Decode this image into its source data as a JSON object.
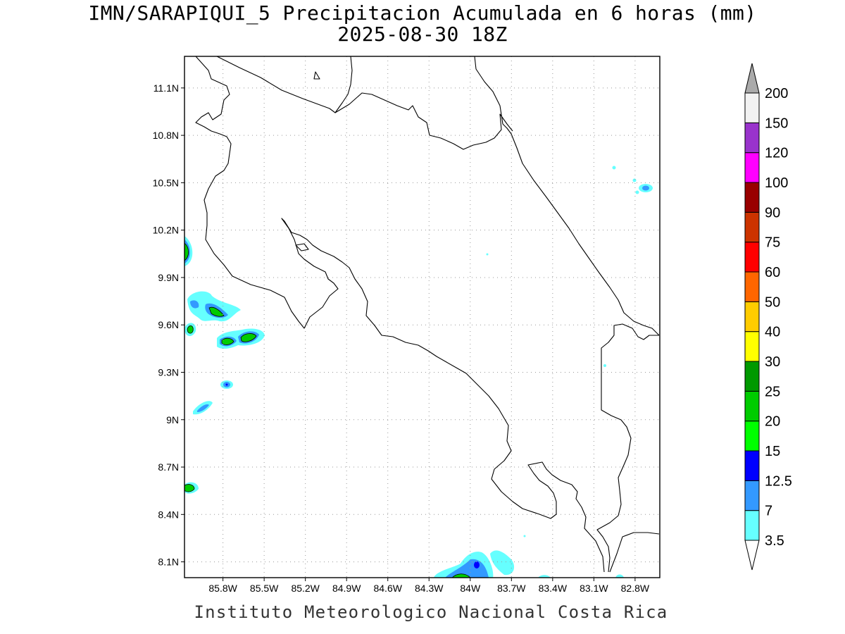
{
  "title_line1": "IMN/SARAPIQUI_5 Precipitacion Acumulada en 6 horas (mm)",
  "title_line2": "2025-08-30 18Z",
  "credit": "Instituto Meteorologico Nacional Costa Rica",
  "map": {
    "lon_range": [
      -86.08,
      -82.62
    ],
    "lat_range": [
      8.0,
      11.3
    ],
    "lat_ticks": [
      "11.1N",
      "10.8N",
      "10.5N",
      "10.2N",
      "9.9N",
      "9.6N",
      "9.3N",
      "9N",
      "8.7N",
      "8.4N",
      "8.1N"
    ],
    "lat_values": [
      11.1,
      10.8,
      10.5,
      10.2,
      9.9,
      9.6,
      9.3,
      9.0,
      8.7,
      8.4,
      8.1
    ],
    "lon_ticks": [
      "85.8W",
      "85.5W",
      "85.2W",
      "84.9W",
      "84.6W",
      "84.3W",
      "84W",
      "83.7W",
      "83.4W",
      "83.1W",
      "82.8W"
    ],
    "lon_values": [
      -85.8,
      -85.5,
      -85.2,
      -84.9,
      -84.6,
      -84.3,
      -84.0,
      -83.7,
      -83.4,
      -83.1,
      -82.8
    ],
    "grid": "dotted"
  },
  "colorbar": {
    "levels": [
      "3.5",
      "7",
      "12.5",
      "15",
      "20",
      "25",
      "30",
      "40",
      "50",
      "60",
      "75",
      "90",
      "100",
      "120",
      "150",
      "200"
    ],
    "colors": [
      "#66ffff",
      "#3399ff",
      "#0000ff",
      "#00ff00",
      "#00cc00",
      "#009900",
      "#ffff00",
      "#ffcc00",
      "#ff6600",
      "#ff0000",
      "#cc3300",
      "#990000",
      "#ff00ff",
      "#9933cc",
      "#f2f2f2"
    ],
    "over_color": "#aaaaaa",
    "under_color": "#ffffff"
  }
}
